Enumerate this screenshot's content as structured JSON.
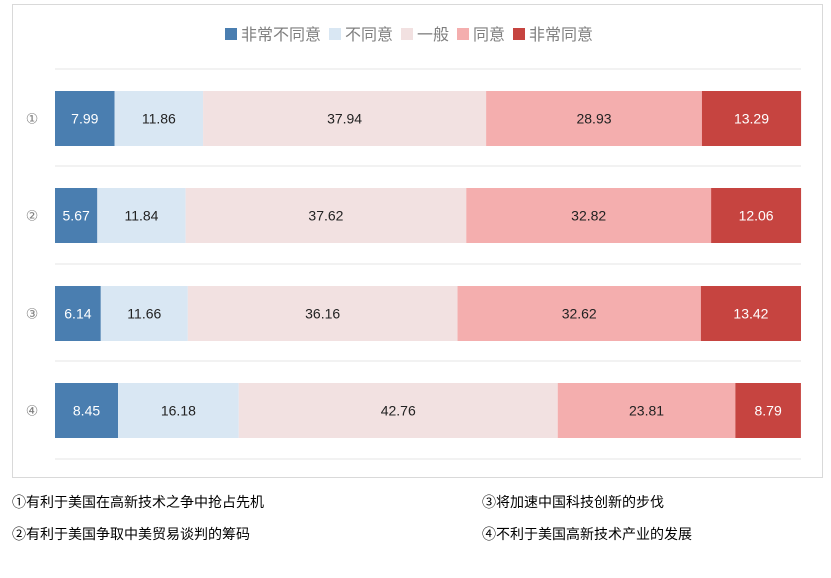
{
  "chart_data": {
    "type": "bar",
    "orientation": "horizontal",
    "stacked": true,
    "categories": [
      "①",
      "②",
      "③",
      "④"
    ],
    "series": [
      {
        "name": "非常不同意",
        "color": "#4a7eb0",
        "values": [
          7.99,
          5.67,
          6.14,
          8.45
        ]
      },
      {
        "name": "不同意",
        "color": "#d9e7f3",
        "values": [
          11.86,
          11.84,
          11.66,
          16.18
        ]
      },
      {
        "name": "一般",
        "color": "#f2e1e1",
        "values": [
          37.94,
          37.62,
          36.16,
          42.76
        ]
      },
      {
        "name": "同意",
        "color": "#f4aeae",
        "values": [
          28.93,
          32.82,
          32.62,
          23.81
        ]
      },
      {
        "name": "非常同意",
        "color": "#c64440",
        "values": [
          13.29,
          12.06,
          13.42,
          8.79
        ]
      }
    ],
    "xlim": [
      0,
      100
    ],
    "grid": true,
    "legend": "top"
  },
  "notes": [
    "①有利于美国在高新技术之争中抢占先机",
    "③将加速中国科技创新的步伐",
    "②有利于美国争取中美贸易谈判的筹码",
    "④不利于美国高新技术产业的发展"
  ]
}
